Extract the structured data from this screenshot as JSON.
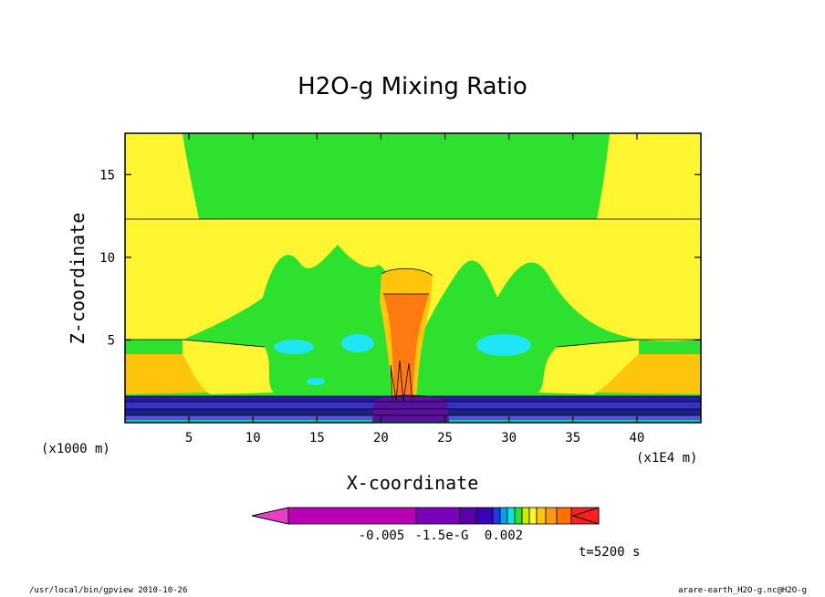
{
  "chart_data": {
    "type": "heatmap",
    "title": "H2O-g Mixing Ratio",
    "xlabel": "X-coordinate",
    "ylabel": "Z-coordinate",
    "x_unit_left": "(x1000 m)",
    "x_unit_right": "(x1E4 m)",
    "xlim": [
      0,
      45
    ],
    "ylim": [
      0,
      17.5
    ],
    "x_ticks": [
      5,
      10,
      15,
      20,
      25,
      30,
      35,
      40
    ],
    "y_ticks": [
      5,
      10,
      15
    ],
    "time_label": "t=5200 s",
    "colorbar": {
      "tick_labels": [
        "-0.005",
        "-1.5e-G",
        "0.002"
      ],
      "colors": [
        "#e83ec8",
        "#b800b4",
        "#7a00b8",
        "#5a00a8",
        "#3a00b4",
        "#2038e8",
        "#00a0e8",
        "#00e8e0",
        "#2ee12e",
        "#c8f000",
        "#fff530",
        "#ffc40c",
        "#ff9a10",
        "#ff7000",
        "#ff2020"
      ]
    },
    "regions": {
      "stratosphere": "#2ee12e",
      "upper_yellow": "#fff530",
      "mid_orange": "#ffc40c",
      "core_orange": "#ff7a10",
      "cyan": "#1ee6f4",
      "boundary_layer": [
        "#2a18a0",
        "#3a30c8",
        "#1a2090",
        "#5a50d8",
        "#00c8c0"
      ]
    }
  },
  "footer": {
    "left": "/usr/local/bin/gpview  2010-10-26",
    "right": "arare-earth_H2O-g.nc@H2O-g"
  }
}
